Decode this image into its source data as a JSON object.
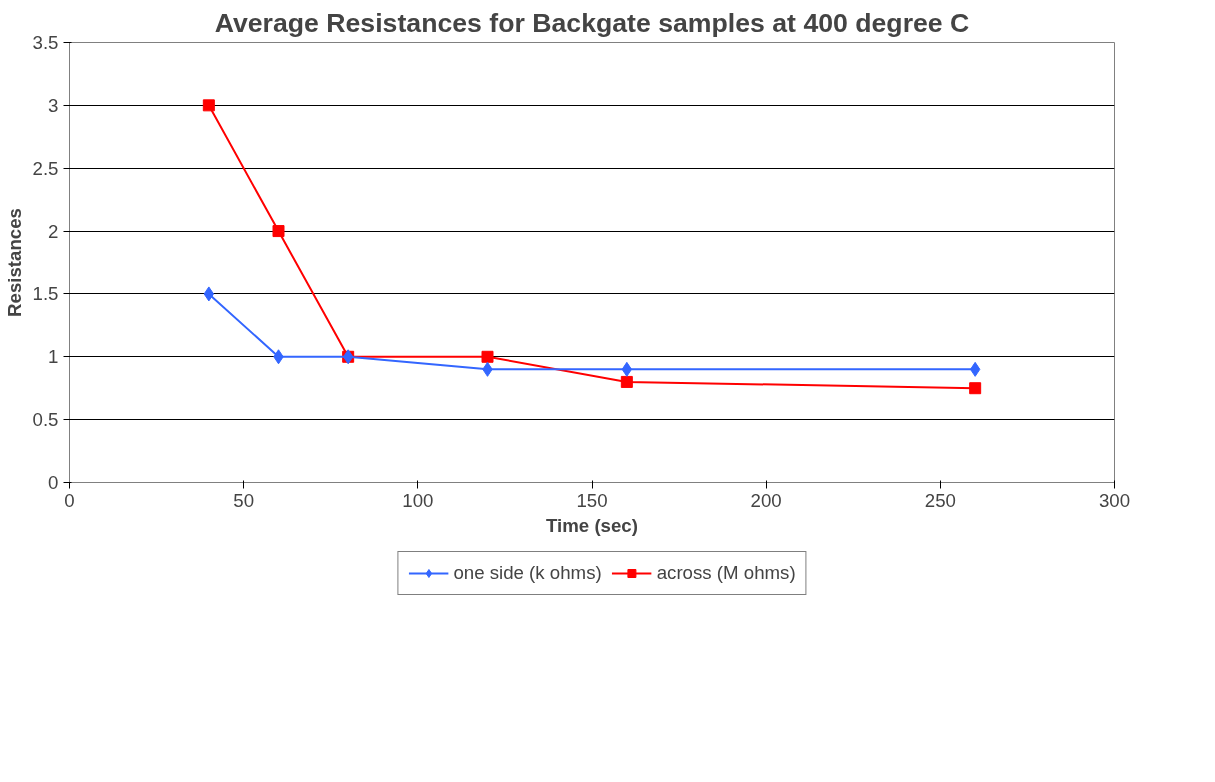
{
  "chart_data": {
    "type": "line",
    "title": "Average Resistances for Backgate samples at 400 degree C",
    "xlabel": "Time (sec)",
    "ylabel": "Resistances",
    "x": [
      40,
      60,
      80,
      120,
      160,
      260
    ],
    "series": [
      {
        "name": "one side (k ohms)",
        "color": "#3366ff",
        "marker": "diamond",
        "values": [
          1.5,
          1.0,
          1.0,
          0.9,
          0.9,
          0.9
        ]
      },
      {
        "name": "across (M ohms)",
        "color": "#ff0000",
        "marker": "square",
        "values": [
          3.0,
          2.0,
          1.0,
          1.0,
          0.8,
          0.75
        ]
      }
    ],
    "xlim": [
      0,
      300
    ],
    "xticks": [
      0,
      50,
      100,
      150,
      200,
      250,
      300
    ],
    "ylim": [
      0,
      3.5
    ],
    "yticks": [
      0,
      0.5,
      1,
      1.5,
      2,
      2.5,
      3,
      3.5
    ],
    "grid": "y",
    "legend": "bottom",
    "line_style": "solid"
  }
}
